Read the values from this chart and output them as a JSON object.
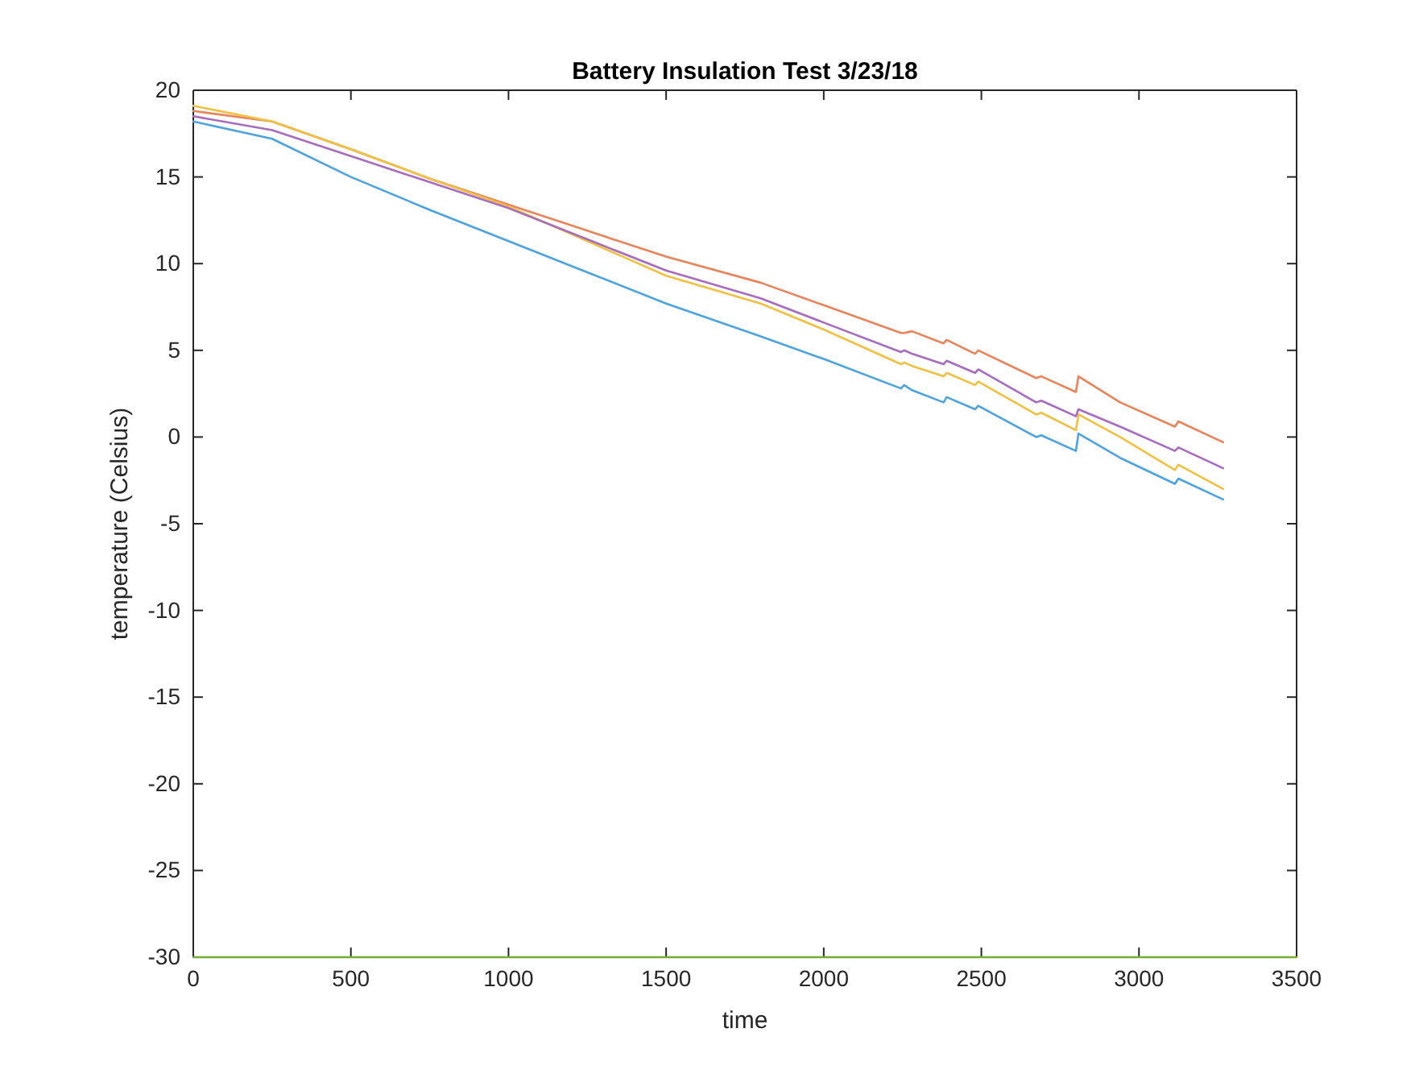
{
  "chart_data": {
    "type": "line",
    "title": "Battery Insulation Test 3/23/18",
    "xlabel": "time",
    "ylabel": "temperature (Celsius)",
    "x": [
      0,
      250,
      500,
      750,
      1000,
      1250,
      1500,
      1800,
      2000,
      2245,
      2255,
      2280,
      2380,
      2390,
      2480,
      2490,
      2674,
      2690,
      2800,
      2808,
      2940,
      3114,
      3125,
      3267
    ],
    "xlim": [
      0,
      3500
    ],
    "xticks": [
      0,
      500,
      1000,
      1500,
      2000,
      2500,
      3000,
      3500
    ],
    "ylim": [
      -30,
      20
    ],
    "yticks": [
      -30,
      -25,
      -20,
      -15,
      -10,
      -5,
      0,
      5,
      10,
      15,
      20
    ],
    "grid": false,
    "marker": "none",
    "line_style": "solid",
    "series": [
      {
        "color": "#4da3e0",
        "values": [
          18.2,
          17.2,
          15,
          13.1,
          11.3,
          9.5,
          7.7,
          5.8,
          4.5,
          2.8,
          3,
          2.7,
          2,
          2.3,
          1.6,
          1.8,
          0,
          0.1,
          -0.8,
          0.2,
          -1.2,
          -2.7,
          -2.4,
          -3.6
        ]
      },
      {
        "color": "#e8835a",
        "values": [
          18.8,
          18.2,
          16.6,
          14.9,
          13.4,
          11.9,
          10.4,
          8.9,
          7.6,
          6,
          6,
          6.1,
          5.4,
          5.6,
          4.8,
          5,
          3.4,
          3.5,
          2.6,
          3.5,
          2,
          0.6,
          0.9,
          -0.3
        ]
      },
      {
        "color": "#f0c040",
        "values": [
          19.1,
          18.2,
          16.6,
          14.9,
          13.3,
          11.3,
          9.3,
          7.7,
          6.2,
          4.2,
          4.3,
          4.1,
          3.5,
          3.7,
          3,
          3.2,
          1.3,
          1.4,
          0.4,
          1.3,
          0,
          -1.9,
          -1.6,
          -3
        ]
      },
      {
        "color": "#a76bbf",
        "values": [
          18.5,
          17.7,
          16.2,
          14.7,
          13.2,
          11.4,
          9.6,
          8,
          6.6,
          4.9,
          5,
          4.8,
          4.2,
          4.4,
          3.7,
          3.9,
          2,
          2.1,
          1.2,
          1.6,
          0.6,
          -0.8,
          -0.6,
          -1.8
        ]
      },
      {
        "color": "#77ac30",
        "x": [
          0,
          3500
        ],
        "values": [
          -30,
          -30
        ]
      }
    ]
  }
}
